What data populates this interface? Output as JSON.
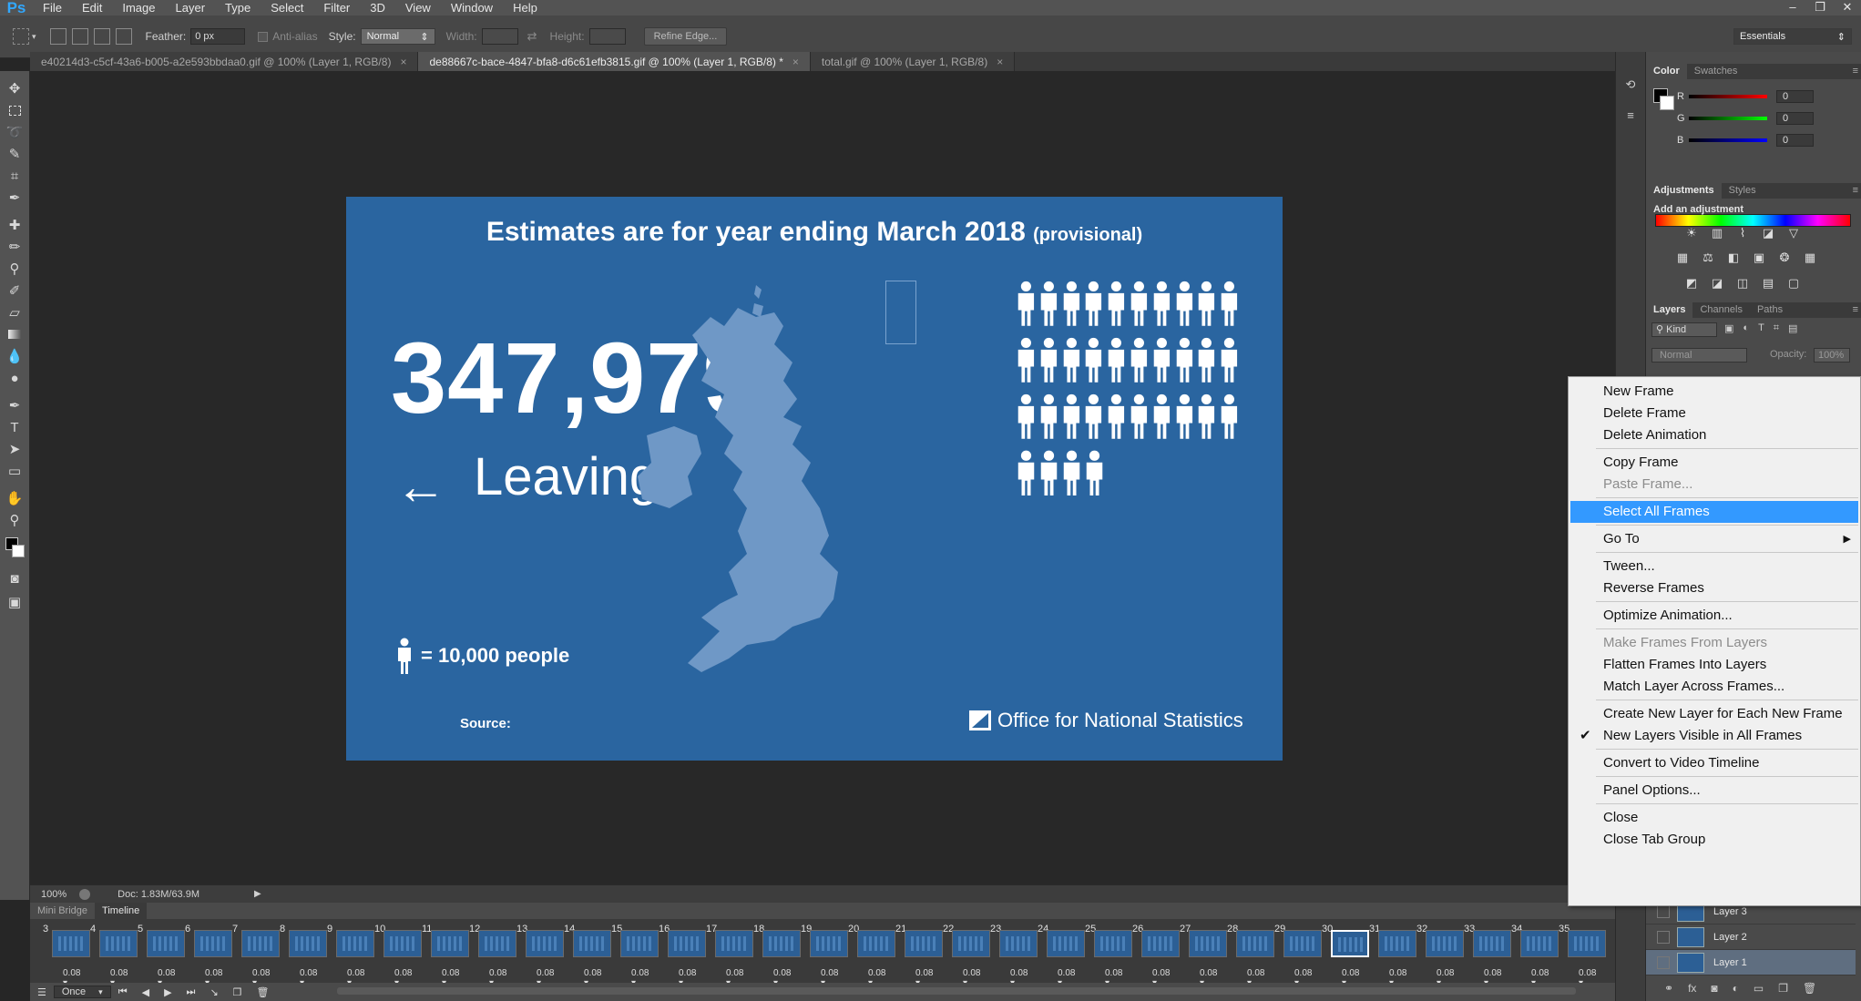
{
  "app": {
    "logo": "Ps",
    "window_controls": [
      "–",
      "❐",
      "✕"
    ]
  },
  "menubar": [
    "File",
    "Edit",
    "Image",
    "Layer",
    "Type",
    "Select",
    "Filter",
    "3D",
    "View",
    "Window",
    "Help"
  ],
  "options": {
    "feather_label": "Feather:",
    "feather_value": "0 px",
    "antialias_label": "Anti-alias",
    "style_label": "Style:",
    "style_value": "Normal",
    "width_label": "Width:",
    "height_label": "Height:",
    "refine_label": "Refine Edge...",
    "workspace": "Essentials"
  },
  "tabs": [
    {
      "label": "e40214d3-c5cf-43a6-b005-a2e593bbdaa0.gif @ 100% (Layer 1, RGB/8)"
    },
    {
      "label": "de88667c-bace-4847-bfa8-d6c61efb3815.gif @ 100% (Layer 1, RGB/8) *"
    },
    {
      "label": "total.gif @ 100% (Layer 1, RGB/8)"
    }
  ],
  "artwork": {
    "title": "Estimates are for year ending March 2018",
    "title_note": "(provisional)",
    "number": "347,979",
    "arrow": "←",
    "direction": "Leaving",
    "legend": "= 10,000 people",
    "source": "Source:",
    "org": "Office for National Statistics",
    "people_rows": [
      10,
      10,
      10,
      4
    ],
    "bg_color": "#2a65a0"
  },
  "status": {
    "zoom": "100%",
    "doc": "Doc: 1.83M/63.9M"
  },
  "timeline": {
    "tabs": [
      "Mini Bridge",
      "Timeline"
    ],
    "frames": [
      {
        "n": "3",
        "d": "0.08"
      },
      {
        "n": "4",
        "d": "0.08"
      },
      {
        "n": "5",
        "d": "0.08"
      },
      {
        "n": "6",
        "d": "0.08"
      },
      {
        "n": "7",
        "d": "0.08"
      },
      {
        "n": "8",
        "d": "0.08"
      },
      {
        "n": "9",
        "d": "0.08"
      },
      {
        "n": "10",
        "d": "0.08"
      },
      {
        "n": "11",
        "d": "0.08"
      },
      {
        "n": "12",
        "d": "0.08"
      },
      {
        "n": "13",
        "d": "0.08"
      },
      {
        "n": "14",
        "d": "0.08"
      },
      {
        "n": "15",
        "d": "0.08"
      },
      {
        "n": "16",
        "d": "0.08"
      },
      {
        "n": "17",
        "d": "0.08"
      },
      {
        "n": "18",
        "d": "0.08"
      },
      {
        "n": "19",
        "d": "0.08"
      },
      {
        "n": "20",
        "d": "0.08"
      },
      {
        "n": "21",
        "d": "0.08"
      },
      {
        "n": "22",
        "d": "0.08"
      },
      {
        "n": "23",
        "d": "0.08"
      },
      {
        "n": "24",
        "d": "0.08"
      },
      {
        "n": "25",
        "d": "0.08"
      },
      {
        "n": "26",
        "d": "0.08"
      },
      {
        "n": "27",
        "d": "0.08"
      },
      {
        "n": "28",
        "d": "0.08"
      },
      {
        "n": "29",
        "d": "0.08"
      },
      {
        "n": "30",
        "d": "0.08",
        "selected": true
      },
      {
        "n": "31",
        "d": "0.08"
      },
      {
        "n": "32",
        "d": "0.08"
      },
      {
        "n": "33",
        "d": "0.08"
      },
      {
        "n": "34",
        "d": "0.08"
      },
      {
        "n": "35",
        "d": "0.08"
      }
    ],
    "loop": "Once"
  },
  "color_panel": {
    "tabs": [
      "Color",
      "Swatches"
    ],
    "channels": [
      {
        "label": "R",
        "value": "0",
        "color": "#ff0000"
      },
      {
        "label": "G",
        "value": "0",
        "color": "#00ff00"
      },
      {
        "label": "B",
        "value": "0",
        "color": "#0000ff"
      }
    ]
  },
  "adjustments": {
    "tabs": [
      "Adjustments",
      "Styles"
    ],
    "heading": "Add an adjustment"
  },
  "layers": {
    "tabs": [
      "Layers",
      "Channels",
      "Paths"
    ],
    "kind": "Kind",
    "blend": "Normal",
    "opacity_label": "Opacity:",
    "opacity_value": "100%",
    "items": [
      "Layer 3",
      "Layer 2",
      "Layer 1"
    ]
  },
  "context_menu": {
    "items": [
      {
        "label": "New Frame"
      },
      {
        "label": "Delete Frame"
      },
      {
        "label": "Delete Animation"
      },
      {
        "label": "Copy Frame"
      },
      {
        "label": "Paste Frame...",
        "disabled": true
      },
      {
        "label": "Select All Frames",
        "highlighted": true
      },
      {
        "label": "Go To",
        "submenu": true
      },
      {
        "label": "Tween..."
      },
      {
        "label": "Reverse Frames"
      },
      {
        "label": "Optimize Animation..."
      },
      {
        "label": "Make Frames From Layers",
        "disabled": true
      },
      {
        "label": "Flatten Frames Into Layers"
      },
      {
        "label": "Match Layer Across Frames..."
      },
      {
        "label": "Create New Layer for Each New Frame"
      },
      {
        "label": "New Layers Visible in All Frames",
        "checked": true
      },
      {
        "label": "Convert to Video Timeline"
      },
      {
        "label": "Panel Options..."
      },
      {
        "label": "Close"
      },
      {
        "label": "Close Tab Group"
      }
    ]
  }
}
